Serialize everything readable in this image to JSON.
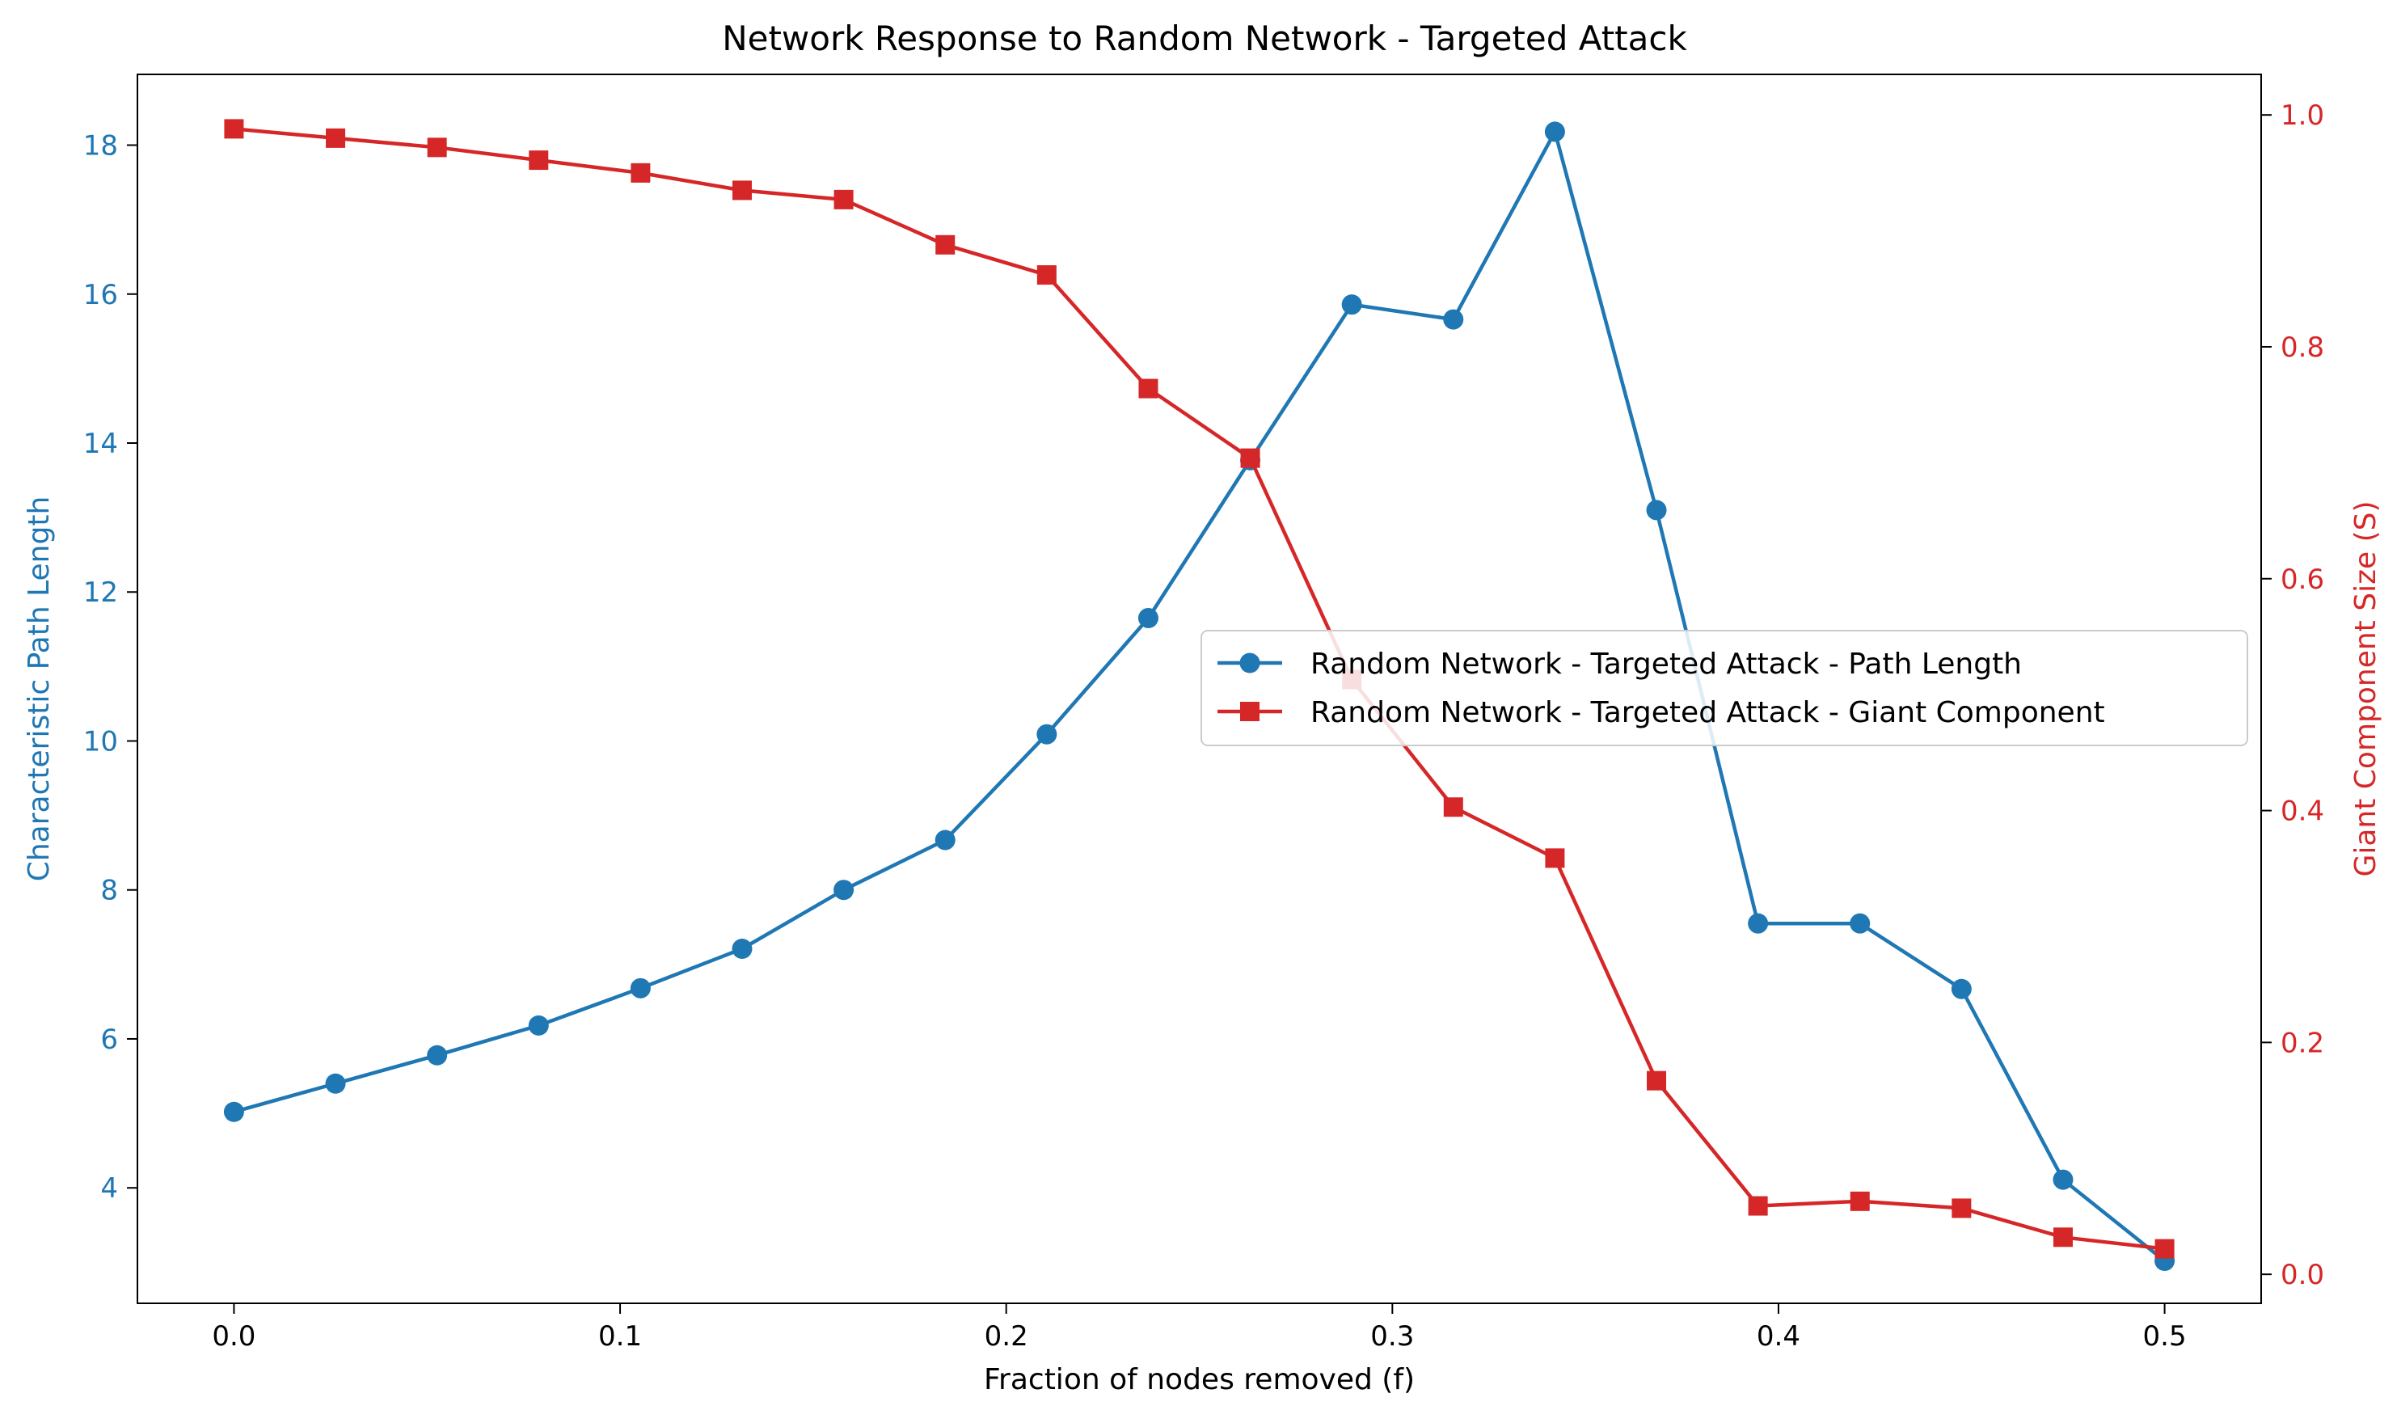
{
  "chart_data": {
    "type": "line",
    "title": "Network Response to Random Network - Targeted Attack",
    "xlabel": "Fraction of nodes removed (f)",
    "ylabel_left": "Characteristic Path Length",
    "ylabel_right": "Giant Component Size (S)",
    "xlim": [
      -0.025,
      0.525
    ],
    "ylim_left": [
      2.45,
      18.95
    ],
    "ylim_right": [
      -0.025,
      1.035
    ],
    "x_ticks": [
      "0.0",
      "0.1",
      "0.2",
      "0.3",
      "0.4",
      "0.5"
    ],
    "y_left_ticks": [
      "4",
      "6",
      "8",
      "10",
      "12",
      "14",
      "16",
      "18"
    ],
    "y_right_ticks": [
      "0.0",
      "0.2",
      "0.4",
      "0.6",
      "0.8",
      "1.0"
    ],
    "grid": false,
    "legend_position": "center-right",
    "x": [
      0.0,
      0.0263,
      0.0526,
      0.0789,
      0.1053,
      0.1316,
      0.1579,
      0.1842,
      0.2105,
      0.2368,
      0.2632,
      0.2895,
      0.3158,
      0.3421,
      0.3684,
      0.3947,
      0.4211,
      0.4474,
      0.4737,
      0.5
    ],
    "series": [
      {
        "name": "Random Network - Targeted Attack - Path Length",
        "axis": "left",
        "color": "#1f77b4",
        "marker": "circle",
        "values": [
          5.02,
          5.4,
          5.78,
          6.18,
          6.68,
          7.21,
          8.0,
          8.67,
          10.09,
          11.65,
          13.77,
          15.86,
          15.66,
          18.18,
          13.1,
          7.55,
          7.55,
          6.67,
          4.11,
          3.02
        ]
      },
      {
        "name": "Random Network - Targeted Attack - Giant Component",
        "axis": "right",
        "color": "#d62728",
        "marker": "square",
        "values": [
          0.988,
          0.98,
          0.972,
          0.961,
          0.95,
          0.935,
          0.927,
          0.888,
          0.862,
          0.764,
          0.704,
          0.513,
          0.403,
          0.359,
          0.167,
          0.059,
          0.063,
          0.057,
          0.032,
          0.022
        ]
      }
    ]
  }
}
